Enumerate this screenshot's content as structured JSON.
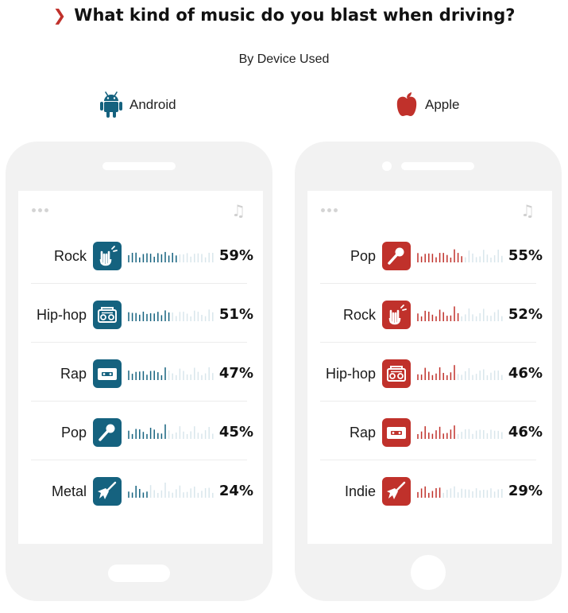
{
  "title": "What kind of music do you blast when driving?",
  "subtitle": "By Device Used",
  "colors": {
    "android": "#15627f",
    "apple": "#c0312b",
    "wave_empty": "#d9e6ec"
  },
  "chart_data": [
    {
      "type": "bar",
      "series_name": "Android",
      "categories": [
        "Rock",
        "Hip-hop",
        "Rap",
        "Pop",
        "Metal"
      ],
      "values": [
        59,
        51,
        47,
        45,
        24
      ],
      "value_labels": [
        "59%",
        "51%",
        "47%",
        "45%",
        "24%"
      ],
      "icons": [
        "rock-hand-icon",
        "boombox-icon",
        "cassette-icon",
        "microphone-icon",
        "guitar-icon"
      ],
      "ylim": [
        0,
        100
      ]
    },
    {
      "type": "bar",
      "series_name": "Apple",
      "categories": [
        "Pop",
        "Rock",
        "Hip-hop",
        "Rap",
        "Indie"
      ],
      "values": [
        55,
        52,
        46,
        46,
        29
      ],
      "value_labels": [
        "55%",
        "52%",
        "46%",
        "46%",
        "29%"
      ],
      "icons": [
        "microphone-icon",
        "rock-hand-icon",
        "boombox-icon",
        "cassette-icon",
        "guitar-icon"
      ],
      "ylim": [
        0,
        100
      ]
    }
  ]
}
